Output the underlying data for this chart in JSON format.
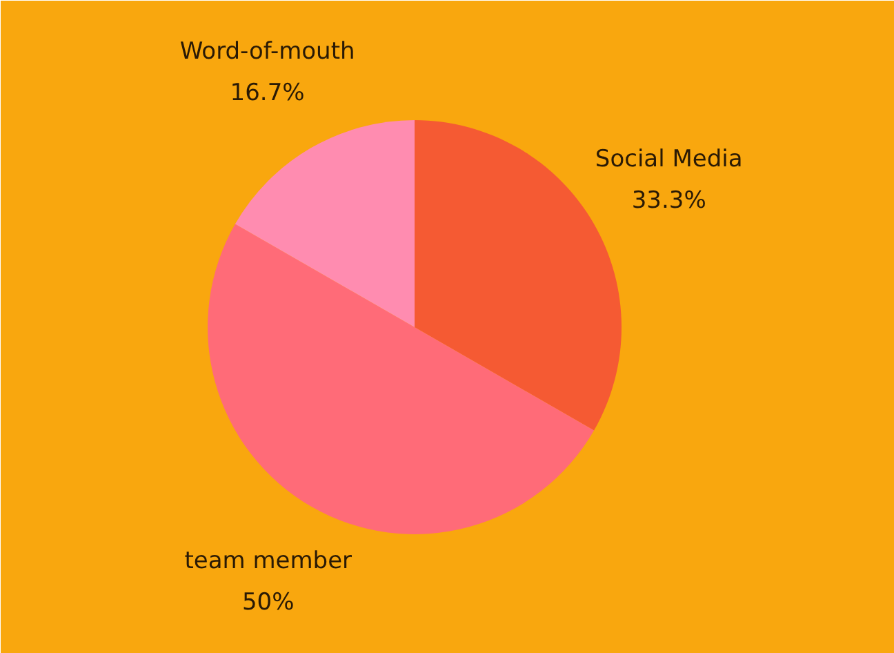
{
  "chart_data": {
    "type": "pie",
    "categories": [
      "Social Media",
      "team member",
      "Word-of-mouth"
    ],
    "values": [
      33.3,
      50,
      16.7
    ],
    "value_labels": [
      "33.3%",
      "50%",
      "16.7%"
    ],
    "colors": [
      "#f55a33",
      "#ff6b78",
      "#ff8cb0"
    ]
  }
}
